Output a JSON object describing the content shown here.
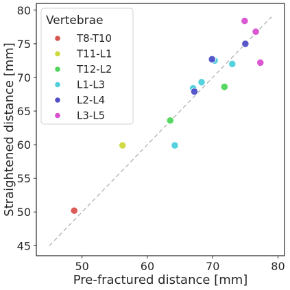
{
  "chart_data": {
    "type": "scatter",
    "xlabel": "Pre-fractured distance [mm]",
    "ylabel": "Straightened distance [mm]",
    "xlim": [
      43,
      81
    ],
    "ylim": [
      43.5,
      81
    ],
    "xticks": [
      50,
      60,
      70,
      80
    ],
    "yticks": [
      45,
      50,
      55,
      60,
      65,
      70,
      75,
      80
    ],
    "grid": false,
    "legend": {
      "title": "Vertebrae",
      "position": "top-left"
    },
    "reference_line": {
      "style": "dashed",
      "color": "#b0b0b0",
      "x": [
        45,
        79
      ],
      "y": [
        45,
        79
      ]
    },
    "series": [
      {
        "name": "T8-T10",
        "color": "#d9534f",
        "points": [
          [
            48.8,
            50.2
          ]
        ]
      },
      {
        "name": "T11-L1",
        "color": "#cfd93e",
        "points": [
          [
            56.2,
            59.9
          ]
        ]
      },
      {
        "name": "T12-L2",
        "color": "#4fd65a",
        "points": [
          [
            63.5,
            63.6
          ],
          [
            71.8,
            68.6
          ]
        ]
      },
      {
        "name": "L1-L3",
        "color": "#4dd0dc",
        "points": [
          [
            64.2,
            59.9
          ],
          [
            67.0,
            68.4
          ],
          [
            68.3,
            69.3
          ],
          [
            70.3,
            72.5
          ],
          [
            73.0,
            72.0
          ]
        ]
      },
      {
        "name": "L2-L4",
        "color": "#4f4fc8",
        "points": [
          [
            67.2,
            67.9
          ],
          [
            69.9,
            72.7
          ],
          [
            75.0,
            75.0
          ]
        ]
      },
      {
        "name": "L3-L5",
        "color": "#d94fd0",
        "points": [
          [
            74.9,
            78.4
          ],
          [
            76.6,
            76.8
          ],
          [
            77.3,
            72.2
          ]
        ]
      }
    ]
  }
}
